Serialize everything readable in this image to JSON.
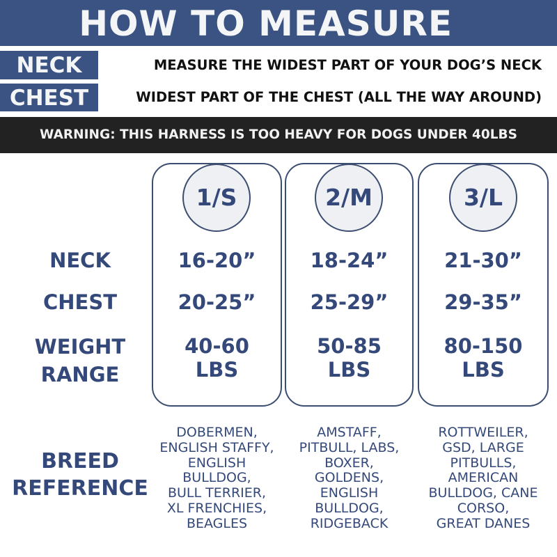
{
  "header": {
    "title": "HOW TO MEASURE"
  },
  "measure": [
    {
      "label": "NECK",
      "description": "MEASURE THE WIDEST PART OF YOUR DOG’S NECK"
    },
    {
      "label": "CHEST",
      "description": "WIDEST PART OF THE CHEST (ALL THE WAY AROUND)"
    }
  ],
  "warning": "WARNING: THIS HARNESS IS TOO HEAVY FOR DOGS UNDER 40LBS",
  "row_labels": {
    "neck": "NECK",
    "chest": "CHEST",
    "weight_1": "WEIGHT",
    "weight_2": "RANGE",
    "breed_1": "BREED",
    "breed_2": "REFERENCE"
  },
  "sizes": [
    {
      "name": "1/S",
      "neck": "16-20”",
      "chest": "20-25”",
      "weight": "40-60",
      "unit": "LBS",
      "breeds": [
        "DOBERMEN,",
        "ENGLISH STAFFY,",
        "ENGLISH",
        "BULLDOG,",
        "BULL TERRIER,",
        "XL FRENCHIES,",
        "BEAGLES"
      ]
    },
    {
      "name": "2/M",
      "neck": "18-24”",
      "chest": "25-29”",
      "weight": "50-85",
      "unit": "LBS",
      "breeds": [
        "AMSTAFF,",
        "PITBULL, LABS,",
        "BOXER,",
        "GOLDENS,",
        "ENGLISH",
        "BULLDOG,",
        "RIDGEBACK"
      ]
    },
    {
      "name": "3/L",
      "neck": "21-30”",
      "chest": "29-35”",
      "weight": "80-150",
      "unit": "LBS",
      "breeds": [
        "ROTTWEILER,",
        "GSD, LARGE",
        "PITBULLS,",
        "AMERICAN",
        "BULLDOG, CANE",
        "CORSO,",
        "GREAT DANES"
      ]
    }
  ],
  "colors": {
    "brand_blue": "#3b5382",
    "text_blue": "#34497a",
    "warning_bg": "#222222"
  }
}
